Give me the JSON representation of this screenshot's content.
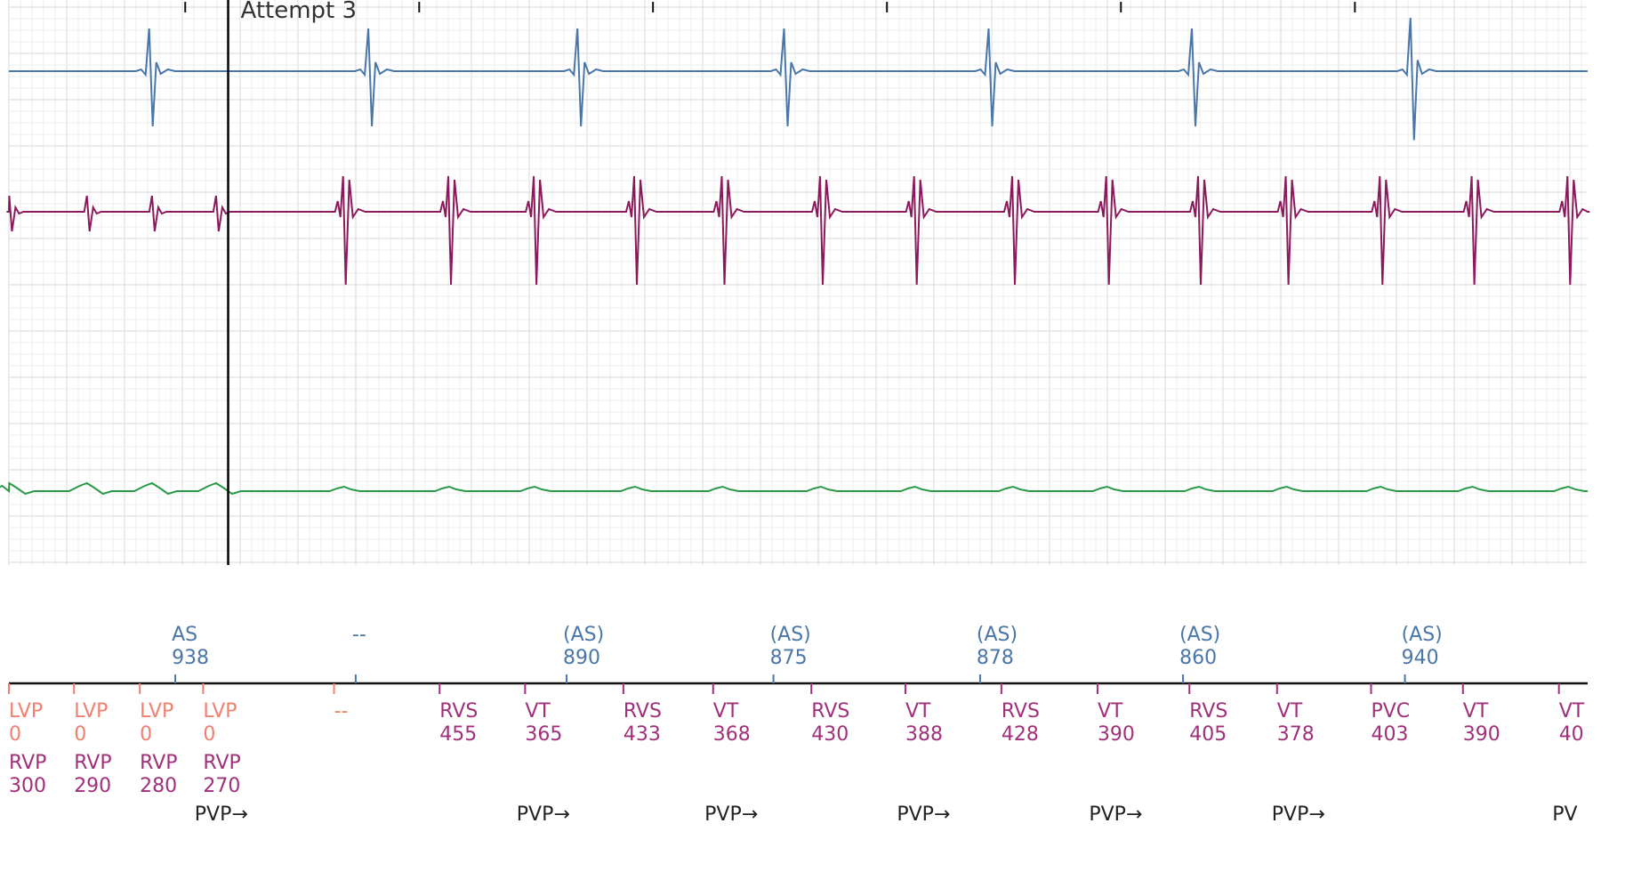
{
  "annotation": {
    "label": "Attempt 3"
  },
  "colors": {
    "grid_major": "#d8d8d8",
    "grid_minor": "#ececec",
    "atrial": "#4a76a8",
    "ventricular": "#8b1a5c",
    "surface": "#2a9a48",
    "atrial_marker": "#4a76a8",
    "lv_marker": "#f08070",
    "rv_marker": "#a0307a",
    "text": "#333333"
  },
  "markers": {
    "atrial_row": [
      {
        "t": 938,
        "label": "AS",
        "value": "938"
      },
      {
        "t": 1955,
        "label": "--",
        "value": ""
      },
      {
        "t": 3144,
        "label": "(AS)",
        "value": "890"
      },
      {
        "t": 4310,
        "label": "(AS)",
        "value": "875"
      },
      {
        "t": 5475,
        "label": "(AS)",
        "value": "878"
      },
      {
        "t": 6619,
        "label": "(AS)",
        "value": "860"
      },
      {
        "t": 7870,
        "label": "(AS)",
        "value": "940"
      }
    ],
    "ventricular_row": [
      {
        "t": 0,
        "label": "LVP",
        "value": "0",
        "color": "lv"
      },
      {
        "t": 367,
        "label": "LVP",
        "value": "0",
        "color": "lv"
      },
      {
        "t": 738,
        "label": "LVP",
        "value": "0",
        "color": "lv"
      },
      {
        "t": 1095,
        "label": "LVP",
        "value": "0",
        "color": "lv"
      },
      {
        "t": 1833,
        "label": "--",
        "value": "",
        "color": "lv"
      },
      {
        "t": 2428,
        "label": "RVS",
        "value": "455",
        "color": "rv"
      },
      {
        "t": 2910,
        "label": "VT",
        "value": "365",
        "color": "rv"
      },
      {
        "t": 3464,
        "label": "RVS",
        "value": "433",
        "color": "rv"
      },
      {
        "t": 3970,
        "label": "VT",
        "value": "368",
        "color": "rv"
      },
      {
        "t": 4524,
        "label": "RVS",
        "value": "430",
        "color": "rv"
      },
      {
        "t": 5054,
        "label": "VT",
        "value": "388",
        "color": "rv"
      },
      {
        "t": 5595,
        "label": "RVS",
        "value": "428",
        "color": "rv"
      },
      {
        "t": 6137,
        "label": "VT",
        "value": "390",
        "color": "rv"
      },
      {
        "t": 6655,
        "label": "RVS",
        "value": "405",
        "color": "rv"
      },
      {
        "t": 7149,
        "label": "VT",
        "value": "378",
        "color": "rv"
      },
      {
        "t": 7679,
        "label": "PVC",
        "value": "403",
        "color": "rv"
      },
      {
        "t": 8197,
        "label": "VT",
        "value": "390",
        "color": "rv"
      },
      {
        "t": 8738,
        "label": "VT",
        "value": "40",
        "color": "rv"
      }
    ],
    "rv_paced_row": [
      {
        "t": 0,
        "label": "RVP",
        "value": "300"
      },
      {
        "t": 367,
        "label": "RVP",
        "value": "290"
      },
      {
        "t": 738,
        "label": "RVP",
        "value": "280"
      },
      {
        "t": 1095,
        "label": "RVP",
        "value": "270"
      }
    ],
    "pvp_row": [
      {
        "t": 1107,
        "label": "PVP→"
      },
      {
        "t": 2922,
        "label": "PVP→"
      },
      {
        "t": 3982,
        "label": "PVP→"
      },
      {
        "t": 5066,
        "label": "PVP→"
      },
      {
        "t": 6149,
        "label": "PVP→"
      },
      {
        "t": 7179,
        "label": "PVP→"
      },
      {
        "t": 8761,
        "label": "PV"
      }
    ]
  },
  "chart_data": {
    "type": "line",
    "title": "",
    "xlabel": "",
    "ylabel": "",
    "x_unit": "ms",
    "xlim": [
      0,
      8900
    ],
    "grid": true,
    "top_ticks_ms": [
      994,
      2313,
      3631,
      4950,
      6269,
      7588
    ],
    "annotation_line_ms": 1236,
    "series": [
      {
        "key": "atrial",
        "complex_times_ms": [
          806,
          2041,
          3220,
          4385,
          5538,
          6684,
          7916
        ],
        "complex_amplitude": [
          1.0,
          1.0,
          1.0,
          1.0,
          1.0,
          1.0,
          1.25
        ]
      },
      {
        "key": "ventricular",
        "paced_times_ms": [
          12,
          450,
          817,
          1178
        ],
        "sensed_times_ms": [
          1889,
          2482,
          2964,
          3530,
          4024,
          4578,
          5108,
          5661,
          6191,
          6709,
          7203,
          7733,
          8251,
          8791
        ]
      },
      {
        "key": "surface",
        "paced_times_ms": [
          12,
          450,
          817,
          1178
        ],
        "sensed_times_ms": [
          1889,
          2482,
          2964,
          3530,
          4024,
          4578,
          5108,
          5661,
          6191,
          6709,
          7203,
          7733,
          8251,
          8791
        ]
      }
    ]
  }
}
